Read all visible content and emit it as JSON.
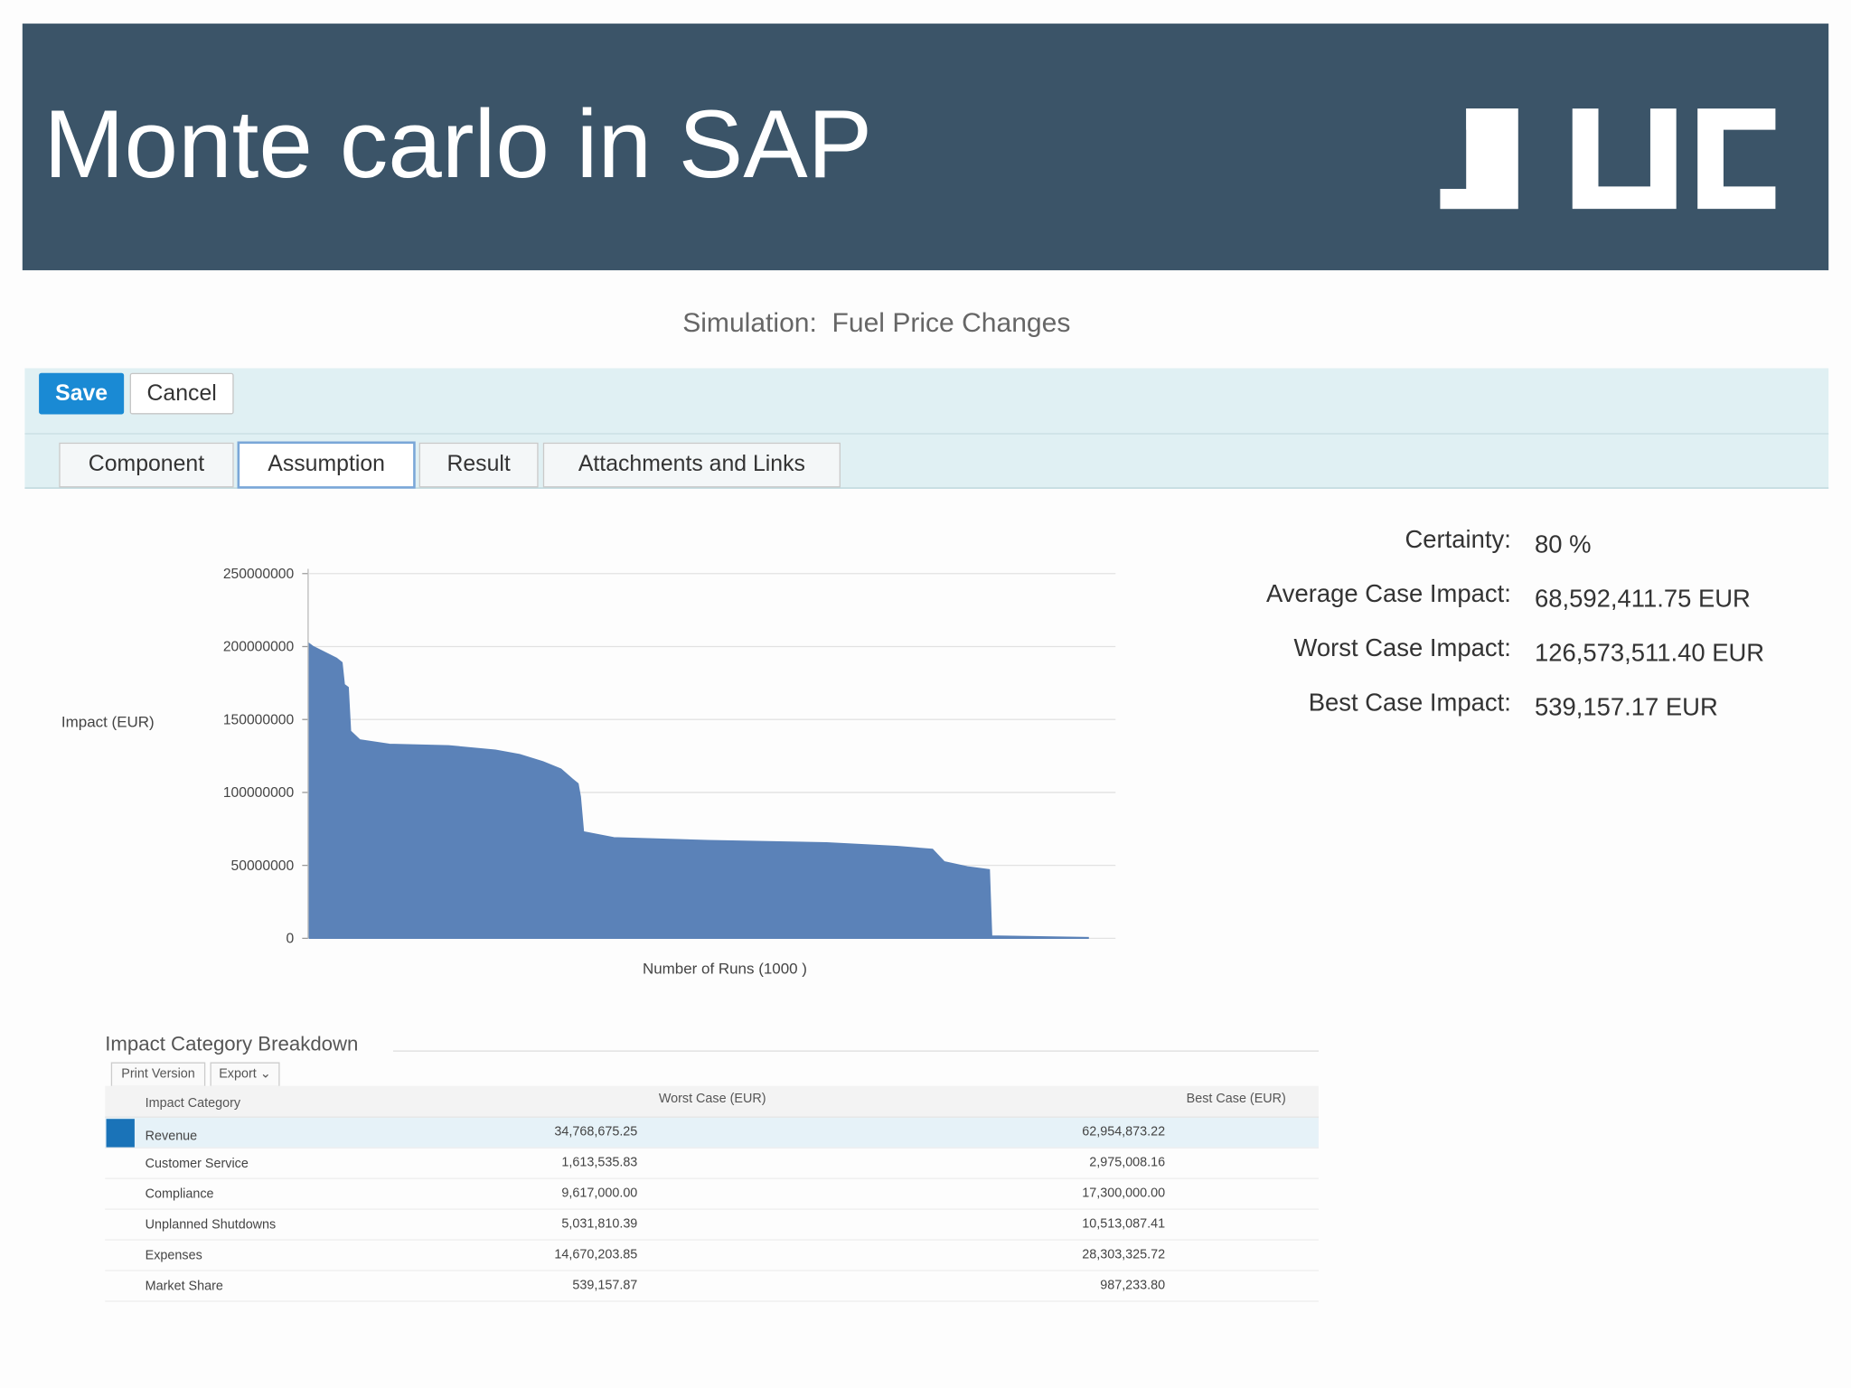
{
  "header": {
    "title": "Monte carlo in SAP"
  },
  "simulation": {
    "label": "Simulation:",
    "name": "Fuel Price Changes"
  },
  "toolbar": {
    "buttons": [
      "Save",
      "Cancel"
    ]
  },
  "tabs": [
    "Component",
    "Assumption",
    "Result",
    "Attachments and Links"
  ],
  "stats": {
    "labels": [
      "Certainty:",
      "Average Case Impact:",
      "Worst Case Impact:",
      "Best Case Impact:"
    ],
    "values": [
      "80 %",
      "68,592,411.75 EUR",
      "126,573,511.40 EUR",
      "539,157.17 EUR"
    ]
  },
  "chart_data": {
    "type": "area",
    "y_label": "Impact (EUR)",
    "x_label": "Number of Runs (1000 )",
    "color": "#5b82b8",
    "x": [
      0,
      5,
      35,
      42,
      45,
      50,
      53,
      65,
      103,
      179,
      239,
      270,
      300,
      323,
      338,
      345,
      348,
      352,
      391,
      512,
      664,
      754,
      800,
      815,
      845,
      873,
      876,
      1000
    ],
    "values": [
      202000000,
      200000000,
      192000000,
      189000000,
      174000000,
      172000000,
      142000000,
      136000000,
      133000000,
      132000000,
      129000000,
      126000000,
      121000000,
      116000000,
      109000000,
      106000000,
      97000000,
      73000000,
      69000000,
      67000000,
      65500000,
      63000000,
      61000000,
      52500000,
      49000000,
      47000000,
      1600000,
      500000
    ],
    "xlim": [
      0,
      1035
    ],
    "ylim": [
      0,
      250000000
    ],
    "yticks": [
      0,
      50000000,
      100000000,
      150000000,
      200000000,
      250000000
    ],
    "grid": true
  },
  "table": {
    "title": "Impact Category Breakdown",
    "buttons": [
      "Print Version",
      "Export"
    ],
    "columns": [
      "Impact Category",
      "Worst Case (EUR)",
      "Best Case (EUR)"
    ],
    "rows": [
      [
        "Revenue",
        "34,768,675.25",
        "62,954,873.22"
      ],
      [
        "Customer Service",
        "1,613,535.83",
        "2,975,008.16"
      ],
      [
        "Compliance",
        "9,617,000.00",
        "17,300,000.00"
      ],
      [
        "Unplanned Shutdowns",
        "5,031,810.39",
        "10,513,087.41"
      ],
      [
        "Expenses",
        "14,670,203.85",
        "28,303,325.72"
      ],
      [
        "Market Share",
        "539,157.87",
        "987,233.80"
      ]
    ]
  }
}
